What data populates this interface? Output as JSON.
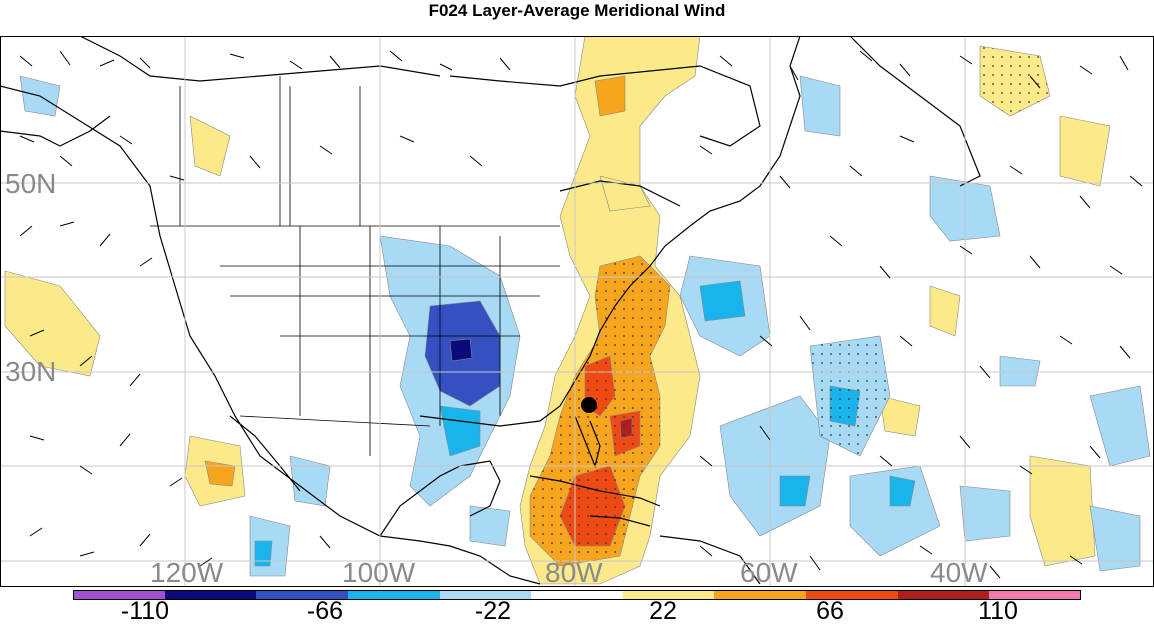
{
  "title": "F024 Layer-Average Meridional Wind",
  "lat_labels": [
    "50N",
    "30N"
  ],
  "lon_labels": [
    "120W",
    "100W",
    "80W",
    "60W",
    "40W"
  ],
  "colorbar": {
    "bins": [
      {
        "color": "#a050d0"
      },
      {
        "color": "#0a0a7a"
      },
      {
        "color": "#3550c0"
      },
      {
        "color": "#19b4ec"
      },
      {
        "color": "#a8d9f5"
      },
      {
        "color": "#ffffff"
      },
      {
        "color": "#fbe98a"
      },
      {
        "color": "#f6a51c"
      },
      {
        "color": "#f04a14"
      },
      {
        "color": "#b01e1e"
      },
      {
        "color": "#f07ab0"
      }
    ],
    "labels": [
      "-110",
      "-66",
      "-22",
      "22",
      "66",
      "110"
    ]
  },
  "storm_marker": "hurricane-center"
}
